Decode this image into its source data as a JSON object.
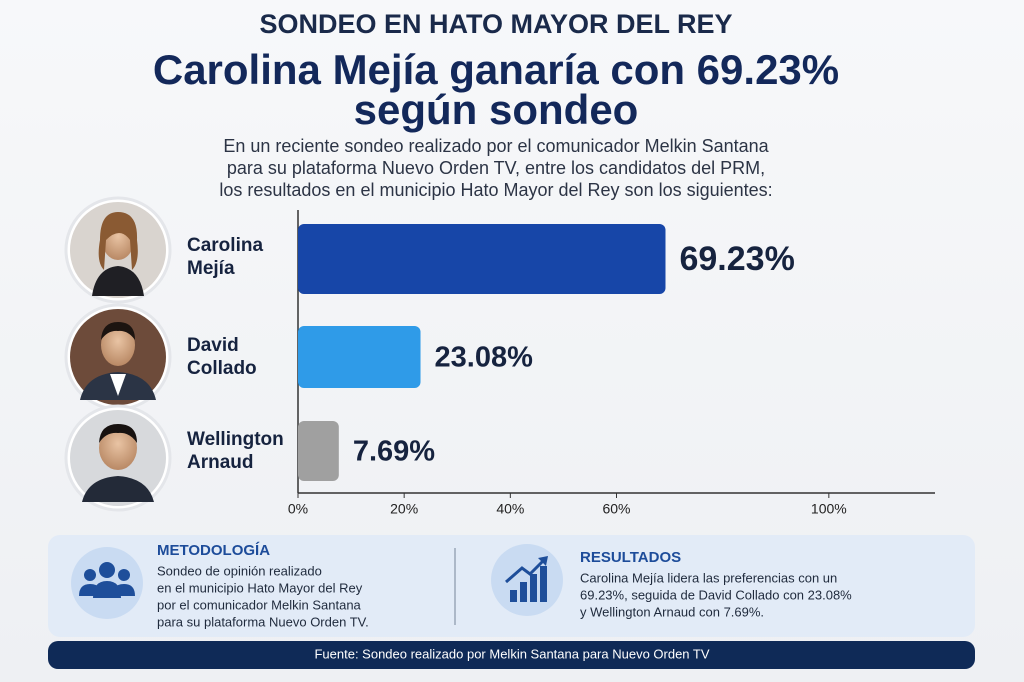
{
  "header": {
    "title": "SONDEO EN HATO MAYOR DEL REY",
    "headline": [
      "Carolina Mejía ganaría con 69.23%",
      "según sondeo"
    ],
    "intro": [
      "En un reciente sondeo realizado por el comunicador Melkin Santana",
      "para su plataforma Nuevo Orden TV, entre los candidatos del PRM,",
      "los resultados en el municipio Hato Mayor del Rey son los siguientes:"
    ]
  },
  "chart_data": {
    "type": "hbar",
    "categories": [
      "Carolina Mejía",
      "David Collado",
      "Wellington Arnaud"
    ],
    "values": [
      69.23,
      23.08,
      7.69
    ],
    "value_labels": [
      "69.23%",
      "23.08%",
      "7.69%"
    ],
    "colors": [
      "#1746a8",
      "#2f9be8",
      "#a0a0a0"
    ],
    "xlim": [
      0,
      120
    ],
    "xticks": [
      {
        "value": 0,
        "label": "0%"
      },
      {
        "value": 20,
        "label": "20%"
      },
      {
        "value": 40,
        "label": "40%"
      },
      {
        "value": 60,
        "label": "60%"
      },
      {
        "value": 100,
        "label": "100%"
      }
    ]
  },
  "panels": {
    "methodology": {
      "title": "METODOLOGÍA",
      "lines": [
        "Sondeo de opinión realizado",
        "en el municipio Hato Mayor del Rey",
        "por el comunicador Melkin Santana",
        "para su plataforma Nuevo Orden TV."
      ]
    },
    "results": {
      "title": "RESULTADOS",
      "lines": [
        "Carolina Mejía lidera las preferencias con un",
        "69.23%, seguida de David Collado con 23.08%",
        "y Wellington Arnaud con 7.69%."
      ]
    }
  },
  "footer": "Fuente: Sondeo realizado por Melkin Santana para Nuevo Orden TV"
}
